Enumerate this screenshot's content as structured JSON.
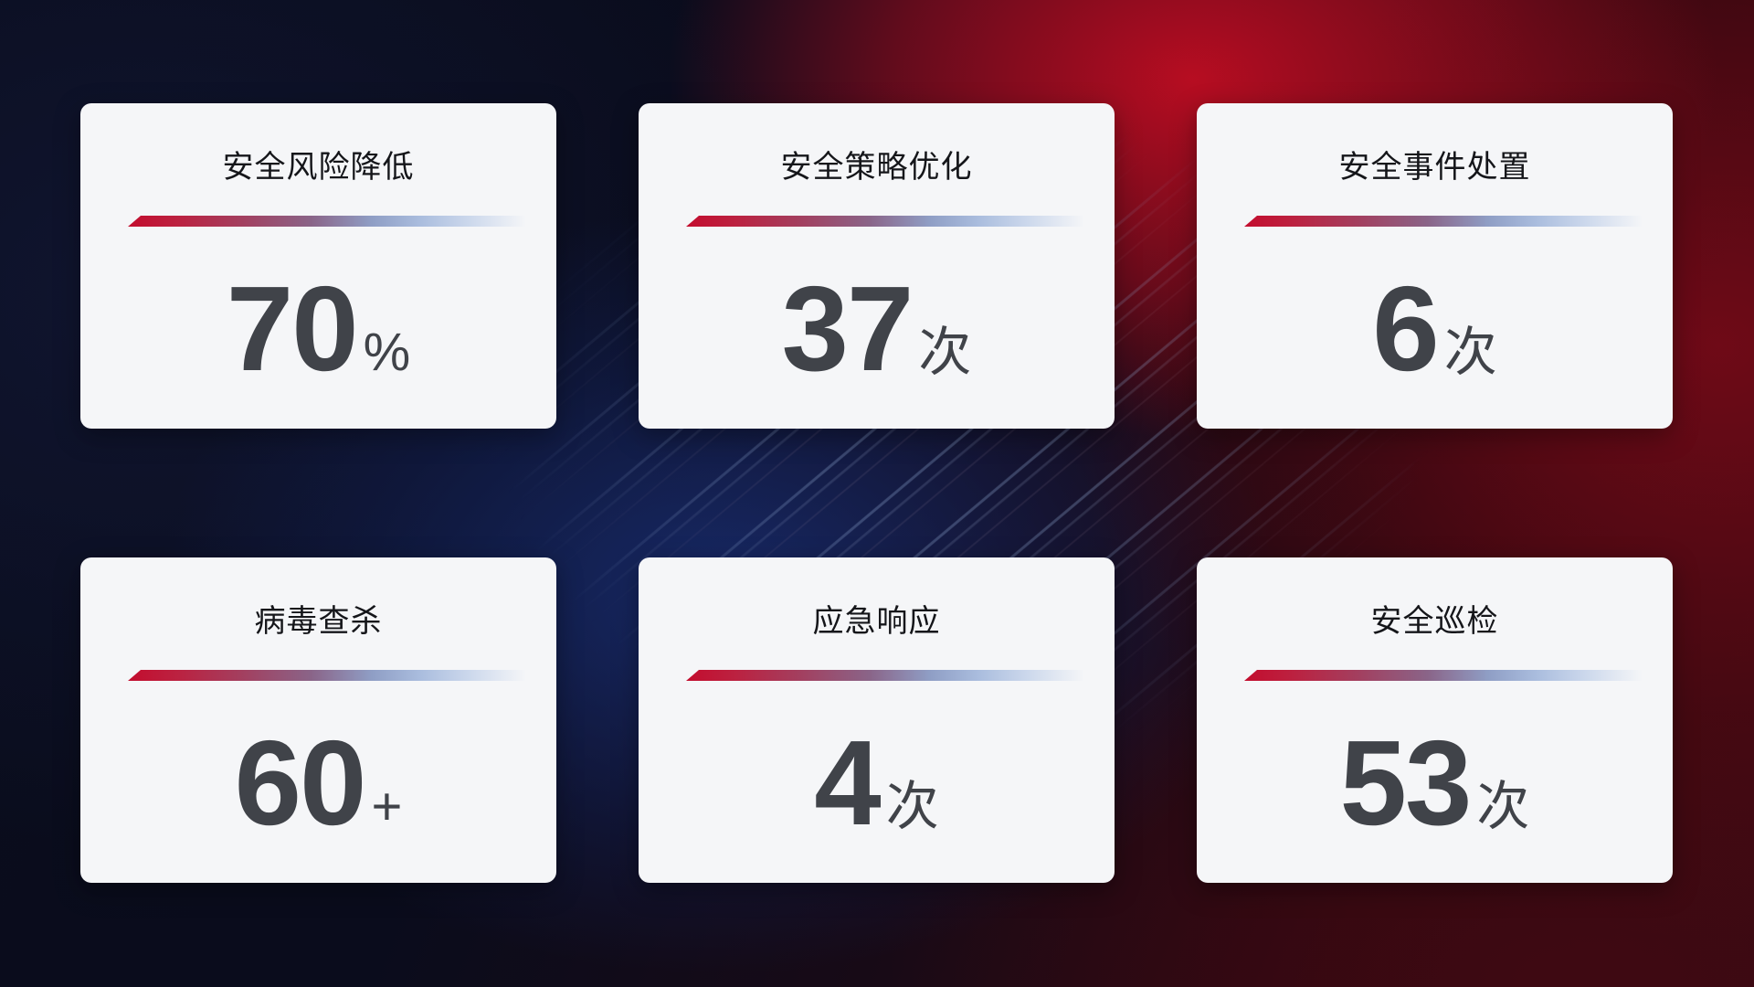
{
  "background": {
    "base_color": "#060810",
    "navy_glow": "#101530",
    "blue_glow": "#182c6e",
    "red_glow": "#bf0d22",
    "maroon_corner": "#370a12"
  },
  "card_style": {
    "background": "#f5f6f8",
    "title_color": "#15161a",
    "value_color": "#404349",
    "line_gradient_start": "#c30d2e",
    "line_gradient_end": "#ccd8ec"
  },
  "cards": [
    {
      "title": "安全风险降低",
      "value": "70",
      "unit": "%"
    },
    {
      "title": "安全策略优化",
      "value": "37",
      "unit": "次"
    },
    {
      "title": "安全事件处置",
      "value": "6",
      "unit": "次"
    },
    {
      "title": "病毒查杀",
      "value": "60",
      "unit": "+"
    },
    {
      "title": "应急响应",
      "value": "4",
      "unit": "次"
    },
    {
      "title": "安全巡检",
      "value": "53",
      "unit": "次"
    }
  ]
}
